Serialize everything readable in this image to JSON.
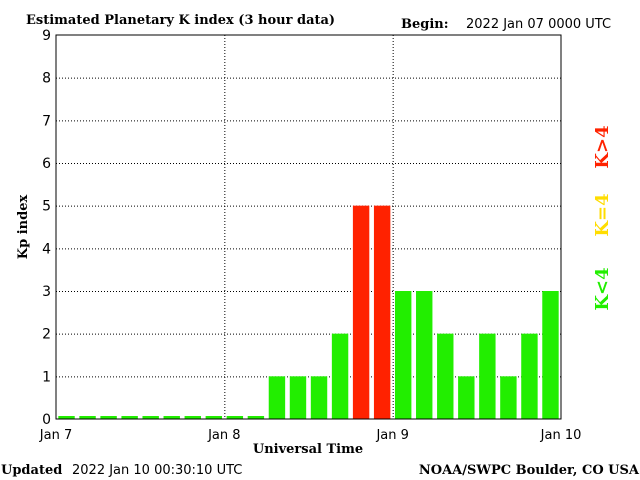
{
  "chart_data": {
    "type": "bar",
    "title": "Estimated Planetary K index (3 hour data)",
    "begin_label": "Begin:",
    "begin_value": "2022 Jan 07 0000 UTC",
    "xlabel": "Universal Time",
    "ylabel": "Kp index",
    "ylim": [
      0,
      9
    ],
    "yticks": [
      "0",
      "1",
      "2",
      "3",
      "4",
      "5",
      "6",
      "7",
      "8",
      "9"
    ],
    "xticks": [
      "Jan 7",
      "Jan 8",
      "Jan 9",
      "Jan 10"
    ],
    "values": [
      0,
      0,
      0,
      0,
      0,
      0,
      0,
      0,
      0,
      0,
      1,
      1,
      1,
      2,
      5,
      5,
      3,
      3,
      2,
      1,
      2,
      1,
      2,
      3
    ],
    "grid": true,
    "legend": [
      {
        "label": "K<4",
        "color": "#22ee00"
      },
      {
        "label": "K=4",
        "color": "#ffdd00"
      },
      {
        "label": "K>4",
        "color": "#ff2200"
      }
    ],
    "legend_position": "right",
    "colors": {
      "low": "#22ee00",
      "mid": "#ffdd00",
      "high": "#ff2200"
    }
  },
  "footer": {
    "updated_label": "Updated",
    "updated_value": "2022 Jan 10 00:30:10 UTC",
    "credit": "NOAA/SWPC Boulder, CO USA"
  }
}
